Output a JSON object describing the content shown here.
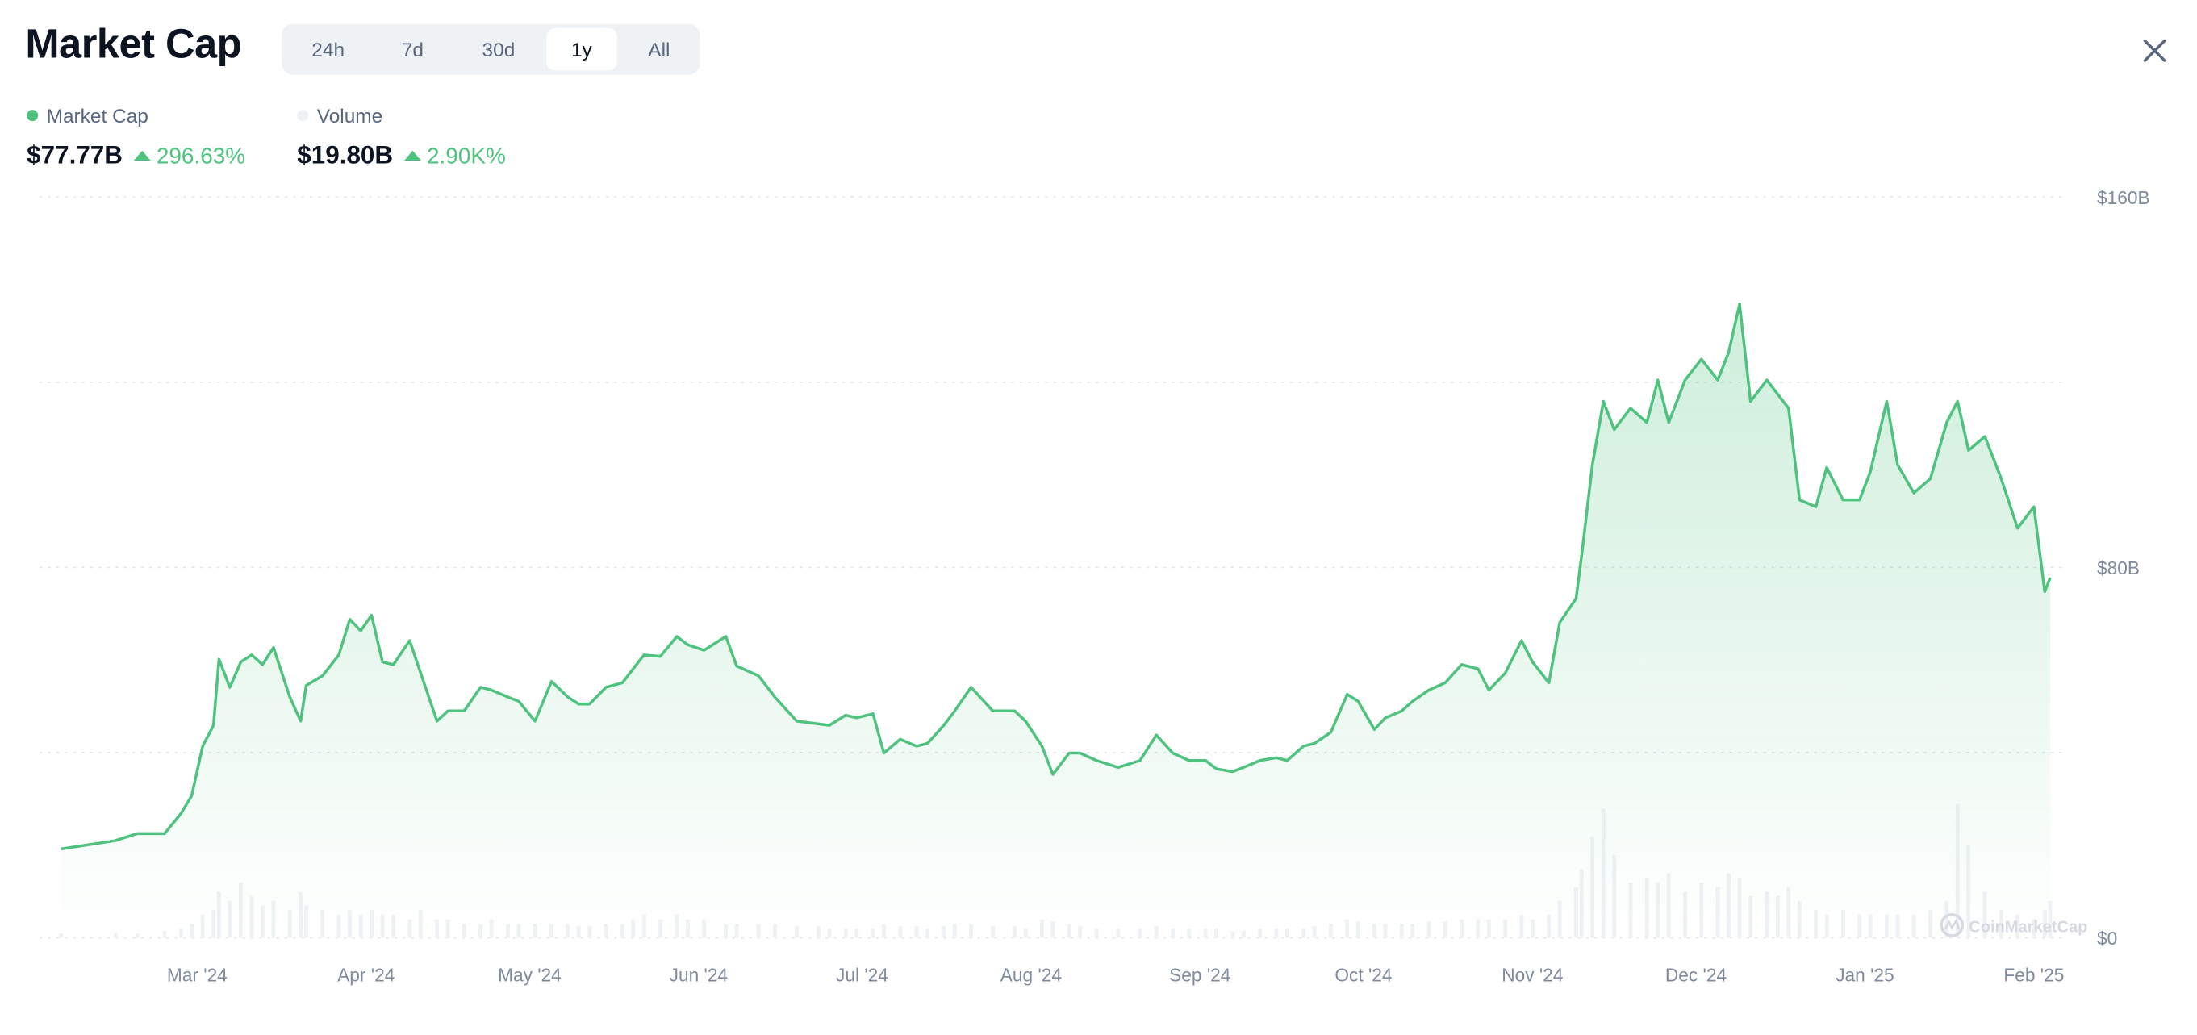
{
  "header": {
    "title": "Market Cap",
    "close_icon": "close-icon"
  },
  "tabs": [
    {
      "label": "24h",
      "active": false
    },
    {
      "label": "7d",
      "active": false
    },
    {
      "label": "30d",
      "active": false
    },
    {
      "label": "1y",
      "active": true
    },
    {
      "label": "All",
      "active": false
    }
  ],
  "legend": [
    {
      "name": "Market Cap",
      "value": "$77.77B",
      "change": "296.63%",
      "direction": "up",
      "color": "#4ec27e"
    },
    {
      "name": "Volume",
      "value": "$19.80B",
      "change": "2.90K%",
      "direction": "up",
      "color": "#eff2f5"
    }
  ],
  "watermark": "CoinMarketCap",
  "colors": {
    "line": "#4ec27e",
    "volume": "#eff2f5",
    "positive": "#4ec27e"
  },
  "chart_data": {
    "type": "line",
    "x_ticks": [
      "Mar '24",
      "Apr '24",
      "May '24",
      "Jun '24",
      "Jul '24",
      "Aug '24",
      "Sep '24",
      "Oct '24",
      "Nov '24",
      "Dec '24",
      "Jan '25",
      "Feb '25"
    ],
    "x_tick_dates": [
      "2024-03-01",
      "2024-04-01",
      "2024-05-01",
      "2024-06-01",
      "2024-07-01",
      "2024-08-01",
      "2024-09-01",
      "2024-10-01",
      "2024-11-01",
      "2024-12-01",
      "2025-01-01",
      "2025-02-01"
    ],
    "y_ticks": [
      "$0",
      "$80B",
      "$160B"
    ],
    "y_tick_values": [
      0,
      80,
      160
    ],
    "ylim": [
      0,
      160
    ],
    "y_unit": "B USD",
    "grid": true,
    "y_axis_side": "right",
    "x": [
      "2024-02-05",
      "2024-02-15",
      "2024-02-19",
      "2024-02-24",
      "2024-02-27",
      "2024-02-29",
      "2024-03-02",
      "2024-03-04",
      "2024-03-05",
      "2024-03-07",
      "2024-03-09",
      "2024-03-11",
      "2024-03-13",
      "2024-03-15",
      "2024-03-18",
      "2024-03-20",
      "2024-03-21",
      "2024-03-24",
      "2024-03-27",
      "2024-03-29",
      "2024-03-31",
      "2024-04-02",
      "2024-04-04",
      "2024-04-06",
      "2024-04-09",
      "2024-04-11",
      "2024-04-14",
      "2024-04-16",
      "2024-04-19",
      "2024-04-22",
      "2024-04-24",
      "2024-04-27",
      "2024-04-29",
      "2024-05-02",
      "2024-05-05",
      "2024-05-08",
      "2024-05-10",
      "2024-05-12",
      "2024-05-15",
      "2024-05-18",
      "2024-05-20",
      "2024-05-22",
      "2024-05-25",
      "2024-05-28",
      "2024-05-30",
      "2024-06-02",
      "2024-06-06",
      "2024-06-08",
      "2024-06-12",
      "2024-06-15",
      "2024-06-19",
      "2024-06-23",
      "2024-06-25",
      "2024-06-28",
      "2024-06-30",
      "2024-07-03",
      "2024-07-05",
      "2024-07-08",
      "2024-07-11",
      "2024-07-13",
      "2024-07-16",
      "2024-07-18",
      "2024-07-21",
      "2024-07-25",
      "2024-07-29",
      "2024-07-31",
      "2024-08-03",
      "2024-08-05",
      "2024-08-08",
      "2024-08-10",
      "2024-08-13",
      "2024-08-17",
      "2024-08-21",
      "2024-08-24",
      "2024-08-27",
      "2024-08-30",
      "2024-09-02",
      "2024-09-04",
      "2024-09-07",
      "2024-09-09",
      "2024-09-12",
      "2024-09-15",
      "2024-09-17",
      "2024-09-20",
      "2024-09-22",
      "2024-09-25",
      "2024-09-28",
      "2024-09-30",
      "2024-10-03",
      "2024-10-05",
      "2024-10-08",
      "2024-10-10",
      "2024-10-13",
      "2024-10-16",
      "2024-10-19",
      "2024-10-22",
      "2024-10-24",
      "2024-10-27",
      "2024-10-30",
      "2024-11-01",
      "2024-11-04",
      "2024-11-06",
      "2024-11-09",
      "2024-11-10",
      "2024-11-12",
      "2024-11-14",
      "2024-11-16",
      "2024-11-19",
      "2024-11-22",
      "2024-11-24",
      "2024-11-26",
      "2024-11-29",
      "2024-12-02",
      "2024-12-05",
      "2024-12-07",
      "2024-12-09",
      "2024-12-11",
      "2024-12-14",
      "2024-12-16",
      "2024-12-18",
      "2024-12-20",
      "2024-12-23",
      "2024-12-25",
      "2024-12-28",
      "2024-12-31",
      "2025-01-02",
      "2025-01-05",
      "2025-01-07",
      "2025-01-10",
      "2025-01-13",
      "2025-01-16",
      "2025-01-18",
      "2025-01-20",
      "2025-01-23",
      "2025-01-26",
      "2025-01-29",
      "2025-02-01",
      "2025-02-03",
      "2025-02-04"
    ],
    "series": [
      {
        "name": "Market Cap",
        "values": [
          19.2,
          21.0,
          22.5,
          22.5,
          26.8,
          30.7,
          41.4,
          45.9,
          60.2,
          54.1,
          59.6,
          61.1,
          59.0,
          62.7,
          52.0,
          46.8,
          54.5,
          56.6,
          61.1,
          68.8,
          66.3,
          69.7,
          59.6,
          59.0,
          64.2,
          57.2,
          46.8,
          49.0,
          49.0,
          54.1,
          53.5,
          52.0,
          51.1,
          46.8,
          55.4,
          52.0,
          50.5,
          50.5,
          54.1,
          55.1,
          58.1,
          61.1,
          60.8,
          65.1,
          63.3,
          62.1,
          65.1,
          58.7,
          56.6,
          52.0,
          46.8,
          46.2,
          45.9,
          48.1,
          47.5,
          48.4,
          39.9,
          42.9,
          41.4,
          42.0,
          45.9,
          49.0,
          54.1,
          49.0,
          49.0,
          46.8,
          41.4,
          35.3,
          39.9,
          39.9,
          38.3,
          36.8,
          38.3,
          43.8,
          39.9,
          38.3,
          38.3,
          36.5,
          35.9,
          36.8,
          38.3,
          38.9,
          38.3,
          41.4,
          42.0,
          44.4,
          52.6,
          51.1,
          45.0,
          47.5,
          49.0,
          51.1,
          53.5,
          55.1,
          59.0,
          58.1,
          53.5,
          57.2,
          64.2,
          59.6,
          55.1,
          68.1,
          73.3,
          82.4,
          102.2,
          115.9,
          109.8,
          114.4,
          111.3,
          120.5,
          111.3,
          120.5,
          125.0,
          120.5,
          126.5,
          136.9,
          115.9,
          120.5,
          117.4,
          114.4,
          94.6,
          93.1,
          101.6,
          94.6,
          94.6,
          100.7,
          115.9,
          102.2,
          96.1,
          99.2,
          111.3,
          115.9,
          105.3,
          108.3,
          99.2,
          88.5,
          93.1,
          74.8,
          77.8
        ]
      },
      {
        "name": "Volume",
        "type": "bar",
        "values": [
          1,
          1,
          1,
          1.5,
          2,
          3,
          5,
          6,
          10,
          8,
          12,
          9,
          7,
          8,
          6,
          10,
          7,
          6,
          5,
          6,
          5,
          6,
          5,
          5,
          4,
          6,
          4,
          4,
          3,
          3,
          4,
          3,
          3,
          3,
          3,
          3,
          2.5,
          2.5,
          3,
          3,
          4,
          5,
          4,
          5,
          4,
          4,
          3,
          3,
          3,
          3,
          2.5,
          2.5,
          2,
          2,
          2,
          2,
          3,
          2.5,
          2.5,
          2,
          2.5,
          3,
          3,
          2.5,
          2.5,
          2,
          4,
          3.5,
          3,
          2.5,
          2,
          2,
          2,
          2.5,
          2,
          2,
          2,
          2,
          1.5,
          1.5,
          2,
          2,
          2,
          2,
          2.5,
          3,
          4,
          3.5,
          3,
          3,
          3,
          3,
          3.5,
          3.5,
          4,
          4,
          4,
          4,
          5,
          4,
          5,
          8,
          11,
          15,
          22,
          28,
          18,
          12,
          13,
          12,
          14,
          10,
          12,
          11,
          14,
          13,
          9,
          10,
          9,
          11,
          8,
          6,
          5,
          6,
          5,
          5,
          5,
          5,
          5,
          6,
          8,
          29,
          20,
          10,
          6,
          5,
          4,
          6,
          8
        ]
      }
    ]
  }
}
